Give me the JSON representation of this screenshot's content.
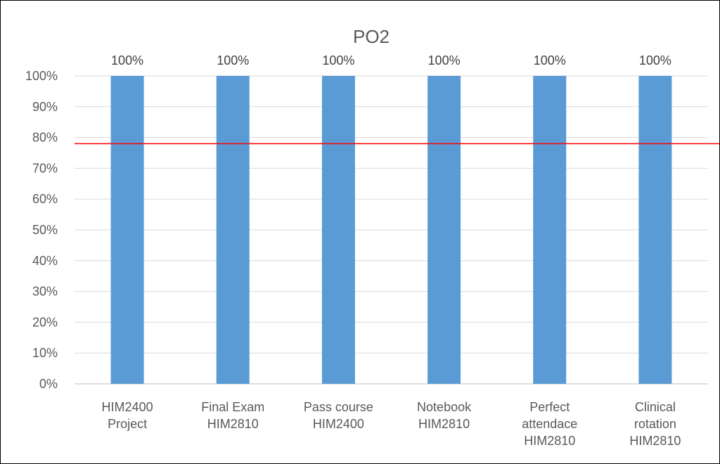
{
  "chart_data": {
    "type": "bar",
    "title": "PO2",
    "categories": [
      [
        "HIM2400",
        "Project"
      ],
      [
        "Final Exam",
        "HIM2810"
      ],
      [
        "Pass course",
        "HIM2400"
      ],
      [
        "Notebook",
        "HIM2810"
      ],
      [
        "Perfect",
        "attendace",
        "HIM2810"
      ],
      [
        "Clinical",
        "rotation",
        "HIM2810"
      ]
    ],
    "values": [
      1.0,
      1.0,
      1.0,
      1.0,
      1.0,
      1.0
    ],
    "data_labels": [
      "100%",
      "100%",
      "100%",
      "100%",
      "100%",
      "100%"
    ],
    "ylim": [
      0,
      1.0
    ],
    "yticks": [
      0,
      0.1,
      0.2,
      0.3,
      0.4,
      0.5,
      0.6,
      0.7,
      0.8,
      0.9,
      1.0
    ],
    "ytick_labels": [
      "0%",
      "10%",
      "20%",
      "30%",
      "40%",
      "50%",
      "60%",
      "70%",
      "80%",
      "90%",
      "100%"
    ],
    "target_line": 0.78,
    "grid": true,
    "legend": "none",
    "xlabel": "",
    "ylabel": "",
    "colors": {
      "bar": "#5B9BD5",
      "target_line": "#FF0000",
      "grid": "#D9D9D9",
      "axis": "#BFBFBF",
      "text": "#595959"
    }
  }
}
